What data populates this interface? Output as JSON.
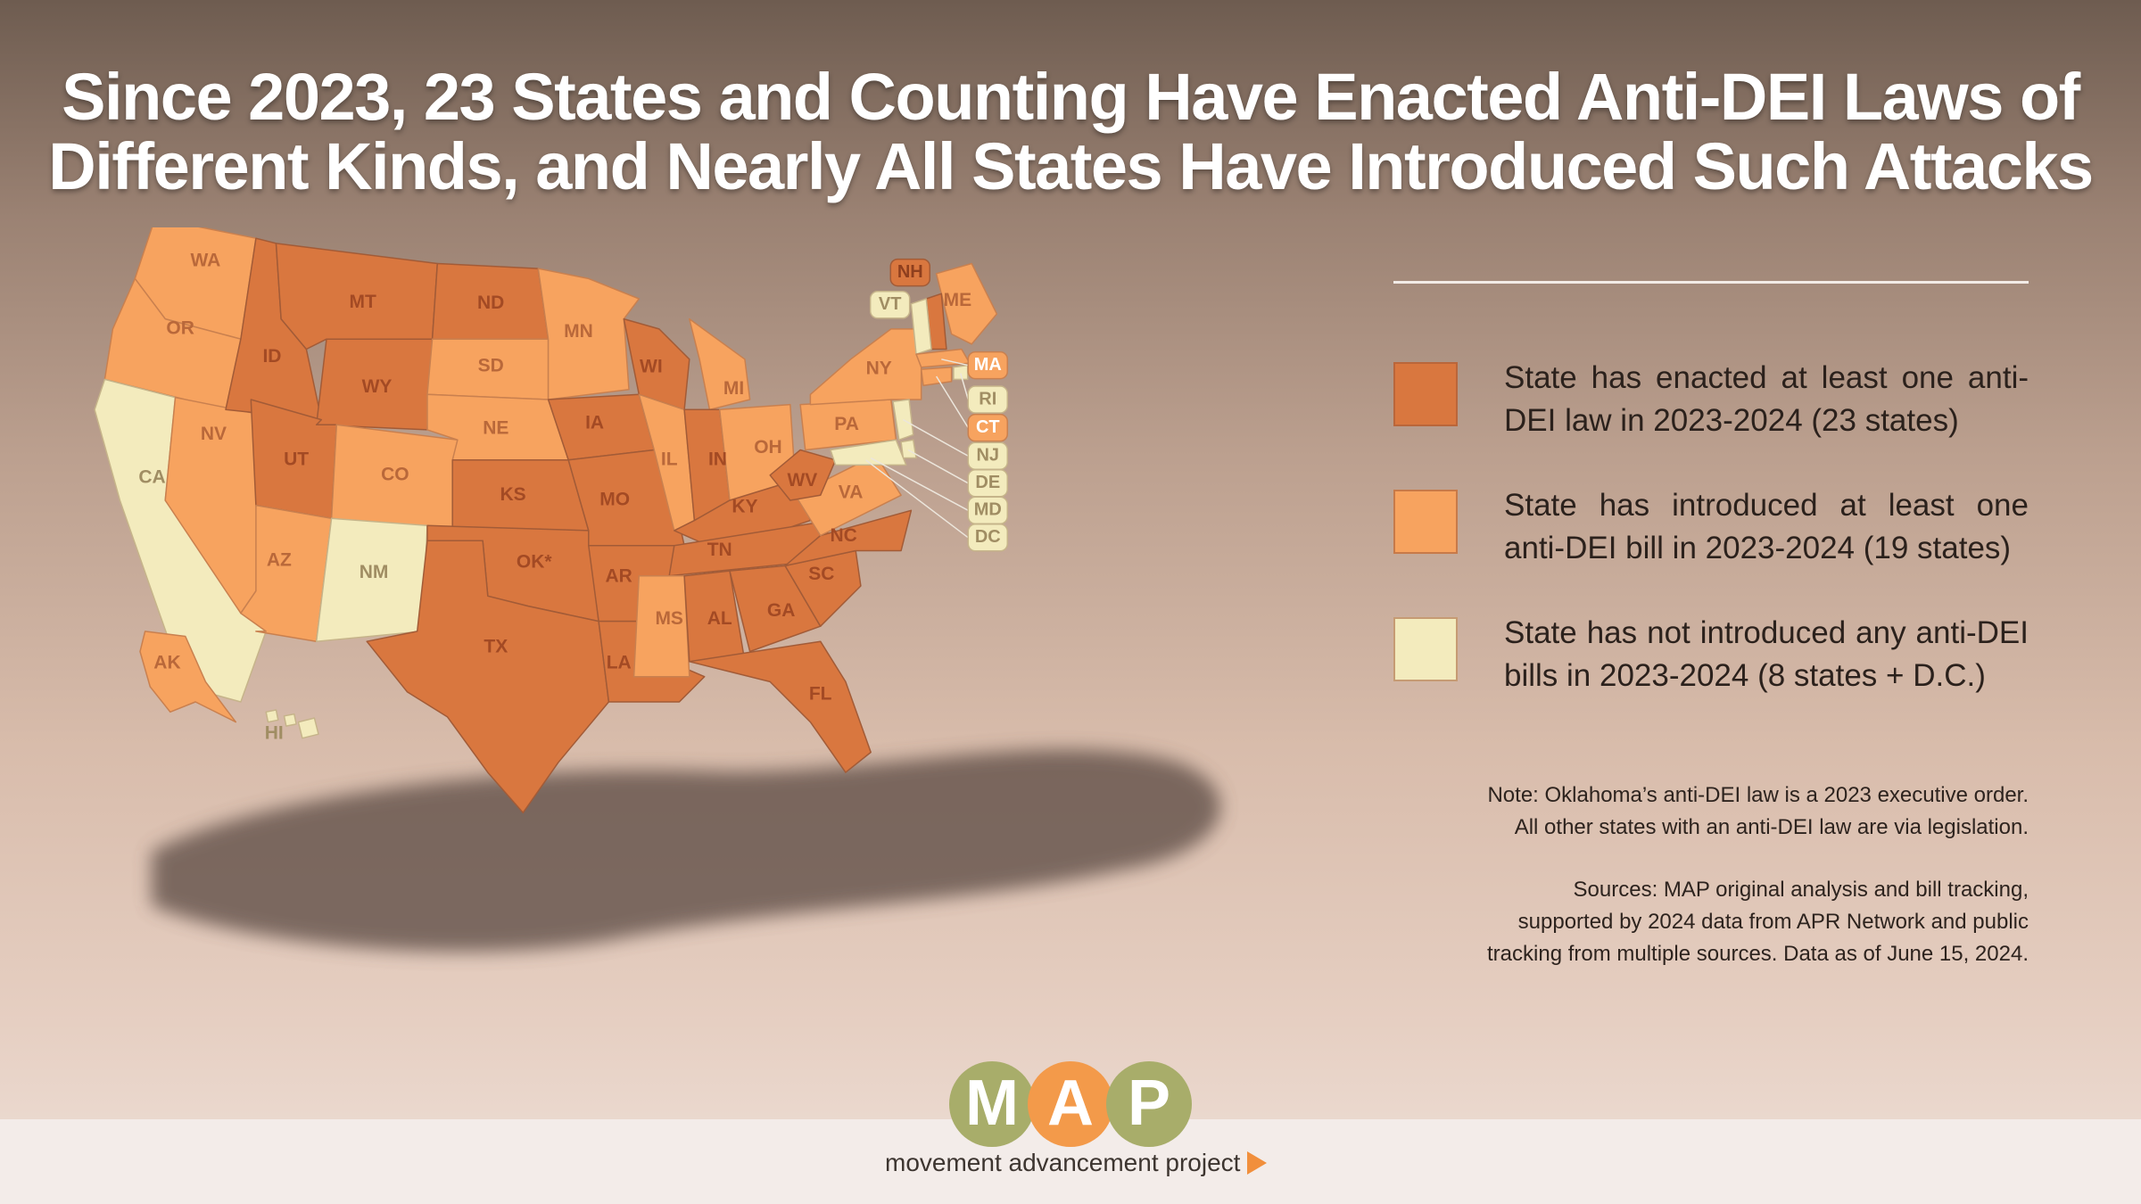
{
  "title": {
    "line1": "Since 2023, 23 States and Counting Have Enacted Anti-DEI Laws of",
    "line2": "Different Kinds, and Nearly All States Have Introduced Such Attacks"
  },
  "colors": {
    "enacted": "#d9773f",
    "introduced": "#f7a35f",
    "none": "#f3ebbd"
  },
  "legend": [
    {
      "status": "enacted",
      "text": "State has enacted at least one anti-DEI law in 2023-2024 (23 states)"
    },
    {
      "status": "introduced",
      "text": "State has introduced at least one anti-DEI bill in 2023-2024 (19 states)"
    },
    {
      "status": "none",
      "text": "State has not introduced any anti-DEI bills in 2023-2024 (8 states + D.C.)"
    }
  ],
  "note": {
    "line1": "Note: Oklahoma’s anti-DEI law is a 2023 executive order.",
    "line2": "All other states with an anti-DEI law are via legislation."
  },
  "sources": {
    "line1": "Sources: MAP original analysis and bill tracking,",
    "line2": "supported by 2024 data from APR Network and public",
    "line3": "tracking from multiple sources. Data as of June 15, 2024."
  },
  "logo": {
    "letters": [
      "M",
      "A",
      "P"
    ],
    "tagline": "movement advancement project"
  },
  "map": {
    "states": [
      {
        "code": "WA",
        "label": "WA",
        "status": "introduced"
      },
      {
        "code": "OR",
        "label": "OR",
        "status": "introduced"
      },
      {
        "code": "CA",
        "label": "CA",
        "status": "none"
      },
      {
        "code": "NV",
        "label": "NV",
        "status": "introduced"
      },
      {
        "code": "ID",
        "label": "ID",
        "status": "enacted"
      },
      {
        "code": "MT",
        "label": "MT",
        "status": "enacted"
      },
      {
        "code": "WY",
        "label": "WY",
        "status": "enacted"
      },
      {
        "code": "UT",
        "label": "UT",
        "status": "enacted"
      },
      {
        "code": "AZ",
        "label": "AZ",
        "status": "introduced"
      },
      {
        "code": "CO",
        "label": "CO",
        "status": "introduced"
      },
      {
        "code": "NM",
        "label": "NM",
        "status": "none"
      },
      {
        "code": "ND",
        "label": "ND",
        "status": "enacted"
      },
      {
        "code": "SD",
        "label": "SD",
        "status": "introduced"
      },
      {
        "code": "NE",
        "label": "NE",
        "status": "introduced"
      },
      {
        "code": "KS",
        "label": "KS",
        "status": "enacted"
      },
      {
        "code": "OK",
        "label": "OK*",
        "status": "enacted"
      },
      {
        "code": "TX",
        "label": "TX",
        "status": "enacted"
      },
      {
        "code": "MN",
        "label": "MN",
        "status": "introduced"
      },
      {
        "code": "IA",
        "label": "IA",
        "status": "enacted"
      },
      {
        "code": "MO",
        "label": "MO",
        "status": "enacted"
      },
      {
        "code": "AR",
        "label": "AR",
        "status": "enacted"
      },
      {
        "code": "LA",
        "label": "LA",
        "status": "enacted"
      },
      {
        "code": "WI",
        "label": "WI",
        "status": "enacted"
      },
      {
        "code": "IL",
        "label": "IL",
        "status": "introduced"
      },
      {
        "code": "MI",
        "label": "MI",
        "status": "introduced"
      },
      {
        "code": "IN",
        "label": "IN",
        "status": "enacted"
      },
      {
        "code": "OH",
        "label": "OH",
        "status": "introduced"
      },
      {
        "code": "KY",
        "label": "KY",
        "status": "enacted"
      },
      {
        "code": "TN",
        "label": "TN",
        "status": "enacted"
      },
      {
        "code": "MS",
        "label": "MS",
        "status": "introduced"
      },
      {
        "code": "AL",
        "label": "AL",
        "status": "enacted"
      },
      {
        "code": "GA",
        "label": "GA",
        "status": "enacted"
      },
      {
        "code": "FL",
        "label": "FL",
        "status": "enacted"
      },
      {
        "code": "SC",
        "label": "SC",
        "status": "enacted"
      },
      {
        "code": "NC",
        "label": "NC",
        "status": "enacted"
      },
      {
        "code": "VA",
        "label": "VA",
        "status": "introduced"
      },
      {
        "code": "WV",
        "label": "WV",
        "status": "enacted"
      },
      {
        "code": "PA",
        "label": "PA",
        "status": "introduced"
      },
      {
        "code": "NY",
        "label": "NY",
        "status": "introduced"
      },
      {
        "code": "ME",
        "label": "ME",
        "status": "introduced"
      },
      {
        "code": "NH",
        "label": "NH",
        "status": "enacted"
      },
      {
        "code": "VT",
        "label": "VT",
        "status": "none"
      },
      {
        "code": "MA",
        "label": "MA",
        "status": "introduced"
      },
      {
        "code": "RI",
        "label": "RI",
        "status": "none"
      },
      {
        "code": "CT",
        "label": "CT",
        "status": "introduced"
      },
      {
        "code": "NJ",
        "label": "NJ",
        "status": "none"
      },
      {
        "code": "DE",
        "label": "DE",
        "status": "none"
      },
      {
        "code": "MD",
        "label": "MD",
        "status": "none"
      },
      {
        "code": "DC",
        "label": "DC",
        "status": "none"
      },
      {
        "code": "AK",
        "label": "AK",
        "status": "introduced"
      },
      {
        "code": "HI",
        "label": "HI",
        "status": "none"
      }
    ]
  }
}
